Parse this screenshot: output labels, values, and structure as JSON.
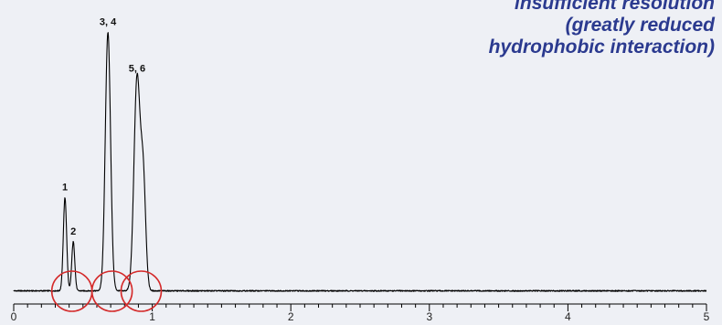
{
  "annotation": {
    "lines": [
      "insufficient resolution",
      "(greatly reduced",
      "hydrophobic interaction)"
    ],
    "color": "#2b3a8f"
  },
  "chart_data": {
    "type": "line",
    "title": "",
    "xlabel": "",
    "ylabel": "",
    "xlim": [
      0,
      5
    ],
    "ylim": [
      0,
      100
    ],
    "x_ticks": [
      0,
      1,
      2,
      3,
      4,
      5
    ],
    "x_tick_labels": [
      "0",
      "1",
      "2",
      "3",
      "4",
      "5"
    ],
    "minor_tick_step": 0.1,
    "baseline": 0.5,
    "grid": false,
    "trace_color": "#000000",
    "peaks": [
      {
        "label": "1",
        "x": 0.37,
        "height": 36,
        "width": 0.012
      },
      {
        "label": "2",
        "x": 0.43,
        "height": 19,
        "width": 0.011
      },
      {
        "label": "3, 4",
        "x": 0.68,
        "height": 100,
        "width": 0.019
      },
      {
        "label": "5, 6",
        "x": 0.89,
        "height": 82,
        "width": 0.022
      },
      {
        "label": "",
        "x": 0.935,
        "height": 42,
        "width": 0.018
      }
    ],
    "highlight_circles": {
      "x_centers": [
        0.42,
        0.71,
        0.92
      ],
      "color": "#d42a2a"
    }
  }
}
